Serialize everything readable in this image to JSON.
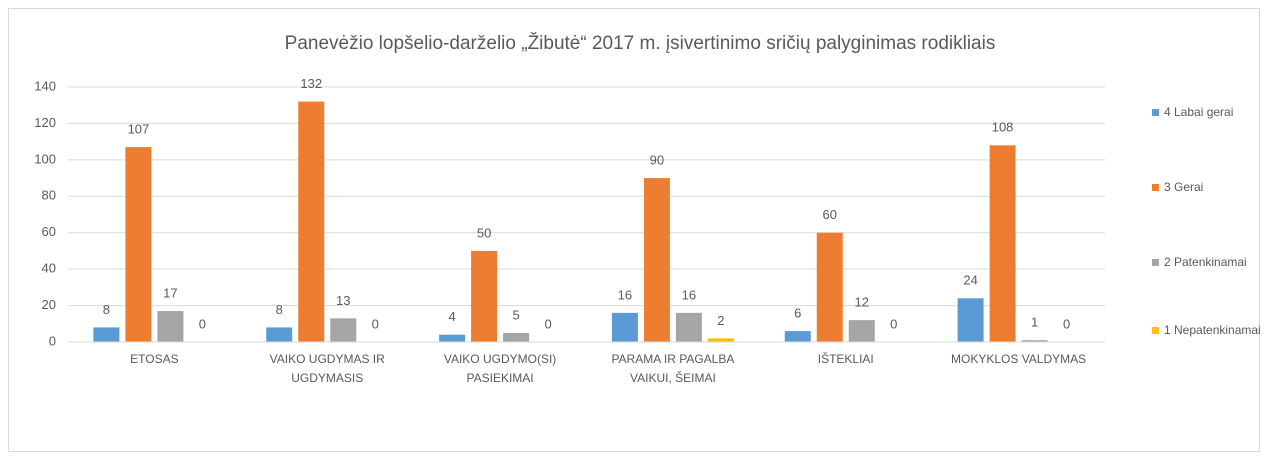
{
  "chart_data": {
    "type": "bar",
    "title": "Panevėžio lopšelio-darželio „Žibutė“ 2017 m. įsivertinimo sričių palyginimas rodikliais",
    "categories": [
      "ETOSAS",
      "VAIKO UGDYMAS IR UGDYMASIS",
      "VAIKO UGDYMO(SI) PASIEKIMAI",
      "PARAMA IR PAGALBA VAIKUI, ŠEIMAI",
      "IŠTEKLIAI",
      "MOKYKLOS VALDYMAS"
    ],
    "series": [
      {
        "name": "4 Labai gerai",
        "color": "#5b9bd5",
        "values": [
          8,
          8,
          4,
          16,
          6,
          24
        ]
      },
      {
        "name": "3 Gerai",
        "color": "#ed7d31",
        "values": [
          107,
          132,
          50,
          90,
          60,
          108
        ]
      },
      {
        "name": "2 Patenkinamai",
        "color": "#a5a5a5",
        "values": [
          17,
          13,
          5,
          16,
          12,
          1
        ]
      },
      {
        "name": "1 Nepatenkinamai",
        "color": "#ffc000",
        "values": [
          0,
          0,
          0,
          2,
          0,
          0
        ]
      }
    ],
    "ylim": [
      0,
      140
    ],
    "yticks": [
      0,
      20,
      40,
      60,
      80,
      100,
      120,
      140
    ],
    "grid": true,
    "legend": "right"
  }
}
